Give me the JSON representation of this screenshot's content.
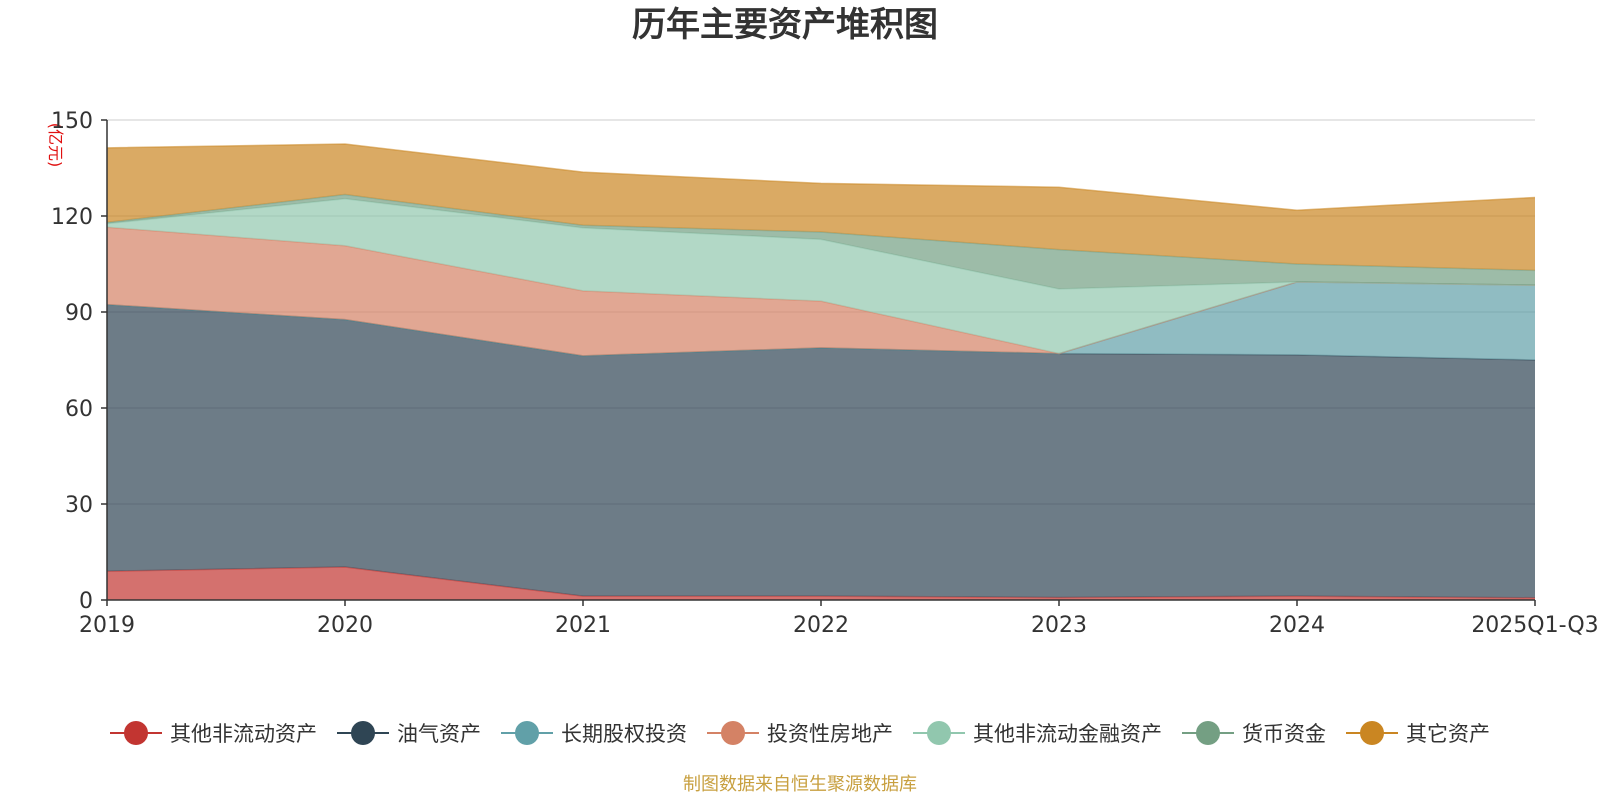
{
  "chart_data": {
    "type": "area",
    "stacked": true,
    "title": "历年主要资产堆积图",
    "ylabel": "(亿元)",
    "xlabel": "",
    "ylim": [
      0,
      150
    ],
    "y_ticks": [
      0,
      30,
      60,
      90,
      120,
      150
    ],
    "categories": [
      "2019",
      "2020",
      "2021",
      "2022",
      "2023",
      "2024",
      "2025Q1-Q3"
    ],
    "grid": true,
    "legend_position": "bottom",
    "series": [
      {
        "name": "其他非流动资产",
        "color": "#c23531",
        "values": [
          9,
          10.3,
          1.2,
          1.2,
          0.8,
          1.2,
          0.7
        ]
      },
      {
        "name": "油气资产",
        "color": "#2f4554",
        "values": [
          83.3,
          77.3,
          75.1,
          77.6,
          76.2,
          75.4,
          74.3
        ]
      },
      {
        "name": "长期股权投资",
        "color": "#61a0a8",
        "values": [
          0,
          0,
          0,
          0,
          0,
          22.8,
          23.4
        ]
      },
      {
        "name": "投资性房地产",
        "color": "#d48265",
        "values": [
          24.2,
          23.1,
          20.3,
          14.6,
          0,
          0,
          0
        ]
      },
      {
        "name": "其他非流动金融资产",
        "color": "#91c7ae",
        "values": [
          1.1,
          14.7,
          19.7,
          19.3,
          20.2,
          0,
          0
        ]
      },
      {
        "name": "货币资金",
        "color": "#749f83",
        "values": [
          0.4,
          1.3,
          0.8,
          2.3,
          12.3,
          5.6,
          4.6
        ]
      },
      {
        "name": "其它资产",
        "color": "#ca8622",
        "values": [
          23.3,
          15.8,
          16.6,
          15.2,
          19.5,
          16.8,
          22.8
        ]
      }
    ]
  },
  "source_text": "制图数据来自恒生聚源数据库",
  "source_color": "#c8a040"
}
